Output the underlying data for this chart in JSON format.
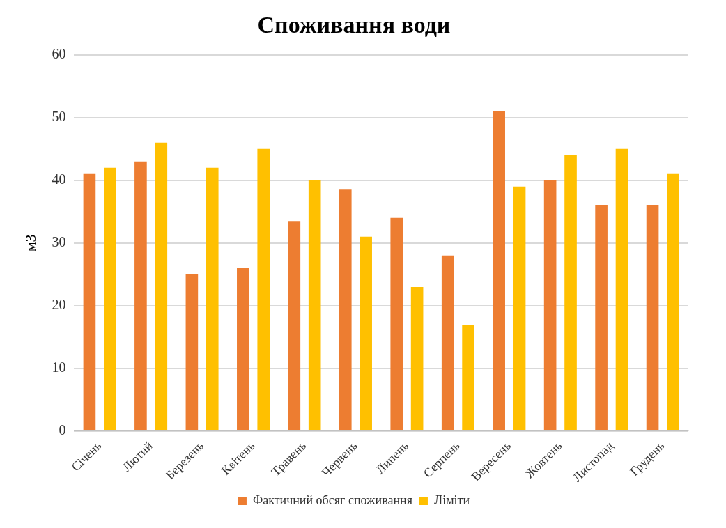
{
  "chart_data": {
    "type": "bar",
    "title": "Споживання води",
    "ylabel": "м3",
    "categories": [
      "Січень",
      "Лютий",
      "Березень",
      "Квітень",
      "Травень",
      "Червень",
      "Липень",
      "Серпень",
      "Вересень",
      "Жовтень",
      "Листопад",
      "Грудень"
    ],
    "series": [
      {
        "name": "Фактичний обсяг споживання",
        "color": "#ed7d31",
        "values": [
          41,
          43,
          25,
          26,
          33.5,
          38.5,
          34,
          28,
          51,
          40,
          36,
          36
        ]
      },
      {
        "name": "Ліміти",
        "color": "#ffc000",
        "values": [
          42,
          46,
          42,
          45,
          40,
          31,
          23,
          17,
          39,
          44,
          45,
          41
        ]
      }
    ],
    "ylim": [
      0,
      60
    ],
    "yticks": [
      0,
      10,
      20,
      30,
      40,
      50,
      60
    ],
    "grid": "y",
    "legend": "bottom"
  }
}
